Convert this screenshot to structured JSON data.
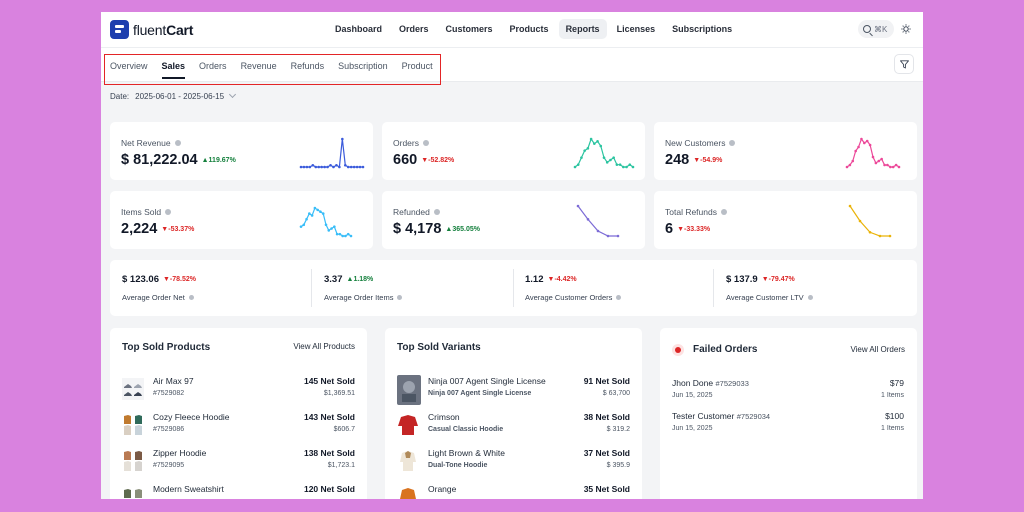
{
  "app": {
    "brand_prefix": "fluent",
    "brand_suffix": "Cart"
  },
  "nav": {
    "items": [
      "Dashboard",
      "Orders",
      "Customers",
      "Products",
      "Reports",
      "Licenses",
      "Subscriptions"
    ],
    "active": "Reports",
    "search_shortcut": "⌘K"
  },
  "tabs": {
    "items": [
      "Overview",
      "Sales",
      "Orders",
      "Revenue",
      "Refunds",
      "Subscription",
      "Product"
    ],
    "active": "Sales"
  },
  "date_filter": {
    "label": "Date:",
    "value": "2025-06-01 - 2025-06-15"
  },
  "stats": [
    {
      "label": "Net Revenue",
      "value": "$ 81,222.04",
      "delta": "119.67%",
      "direction": "up",
      "color": "#3b5bdb",
      "spark": [
        2,
        2,
        2,
        2,
        3,
        2,
        2,
        2,
        2,
        2,
        3,
        2,
        3,
        2,
        18,
        3,
        2,
        2,
        2,
        2,
        2,
        2
      ]
    },
    {
      "label": "Orders",
      "value": "660",
      "delta": "-52.82%",
      "direction": "down",
      "color": "#2bc4a0",
      "spark": [
        2,
        3,
        6,
        9,
        10,
        14,
        12,
        13,
        11,
        6,
        4,
        5,
        6,
        3,
        3,
        2,
        2,
        3,
        2
      ]
    },
    {
      "label": "New Customers",
      "value": "248",
      "delta": "-54.9%",
      "direction": "down",
      "color": "#ec4899",
      "spark": [
        2,
        3,
        5,
        10,
        12,
        16,
        14,
        15,
        13,
        7,
        4,
        5,
        6,
        3,
        3,
        2,
        2,
        3,
        2
      ]
    },
    {
      "label": "Items Sold",
      "value": "2,224",
      "delta": "-53.37%",
      "direction": "down",
      "color": "#38bdf8",
      "spark": [
        8,
        9,
        12,
        15,
        14,
        18,
        17,
        16,
        15,
        9,
        6,
        7,
        8,
        4,
        4,
        3,
        3,
        4,
        3
      ]
    },
    {
      "label": "Refunded",
      "value": "$ 4,178",
      "delta": "365.05%",
      "direction": "up",
      "color": "#7c6bd6",
      "spark": [
        20,
        12,
        5,
        2,
        2
      ]
    },
    {
      "label": "Total Refunds",
      "value": "6",
      "delta": "-33.33%",
      "direction": "down",
      "color": "#eab308",
      "spark": [
        18,
        10,
        4,
        2,
        2
      ]
    }
  ],
  "mini_stats": [
    {
      "value": "$ 123.06",
      "delta": "-78.52%",
      "direction": "down",
      "label": "Average Order Net"
    },
    {
      "value": "3.37",
      "delta": "1.18%",
      "direction": "up",
      "label": "Average Order Items"
    },
    {
      "value": "1.12",
      "delta": "-4.42%",
      "direction": "down",
      "label": "Average Customer Orders"
    },
    {
      "value": "$ 137.9",
      "delta": "-79.47%",
      "direction": "down",
      "label": "Average Customer LTV"
    }
  ],
  "top_products": {
    "title": "Top Sold Products",
    "view_all": "View All Products",
    "items": [
      {
        "name": "Air Max 97",
        "sku": "#7529082",
        "sold": "145 Net Sold",
        "amount": "$1,369.51"
      },
      {
        "name": "Cozy Fleece Hoodie",
        "sku": "#7529086",
        "sold": "143 Net Sold",
        "amount": "$606.7"
      },
      {
        "name": "Zipper Hoodie",
        "sku": "#7529095",
        "sold": "138 Net Sold",
        "amount": "$1,723.1"
      },
      {
        "name": "Modern Sweatshirt",
        "sku": "",
        "sold": "120 Net Sold",
        "amount": ""
      }
    ]
  },
  "top_variants": {
    "title": "Top Sold Variants",
    "items": [
      {
        "name": "Ninja 007 Agent Single License",
        "sub": "Ninja 007 Agent Single License",
        "sold": "91 Net Sold",
        "amount": "$ 63,700"
      },
      {
        "name": "Crimson",
        "sub": "Casual Classic Hoodie",
        "sold": "38 Net Sold",
        "amount": "$ 319.2"
      },
      {
        "name": "Light Brown & White",
        "sub": "Dual-Tone Hoodie",
        "sold": "37 Net Sold",
        "amount": "$ 395.9"
      },
      {
        "name": "Orange",
        "sub": "",
        "sold": "35 Net Sold",
        "amount": ""
      }
    ]
  },
  "failed_orders": {
    "title": "Failed Orders",
    "view_all": "View All Orders",
    "items": [
      {
        "name": "Jhon Done",
        "order": "#7529033",
        "date": "Jun 15, 2025",
        "amount": "$79",
        "items": "1 Items"
      },
      {
        "name": "Tester Customer",
        "order": "#7529034",
        "date": "Jun 15, 2025",
        "amount": "$100",
        "items": "1 Items"
      }
    ]
  }
}
